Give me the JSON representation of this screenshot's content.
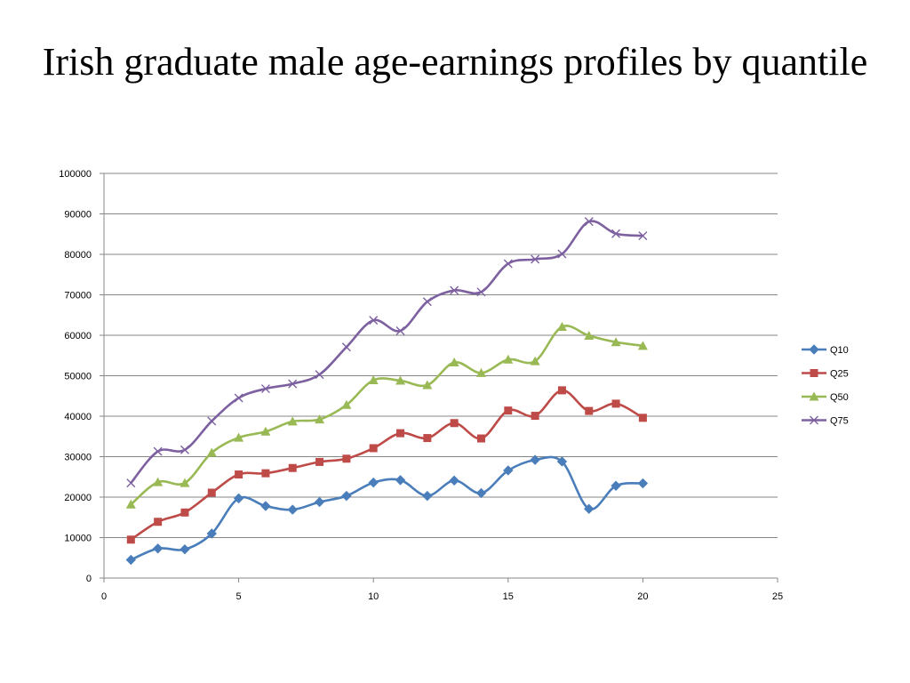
{
  "chart_data": {
    "type": "line",
    "title": "Irish graduate male age-earnings profiles by quantile",
    "xlabel": "",
    "ylabel": "",
    "xlim": [
      0,
      25
    ],
    "ylim": [
      0,
      100000
    ],
    "x_ticks": [
      0,
      5,
      10,
      15,
      20,
      25
    ],
    "y_ticks": [
      0,
      10000,
      20000,
      30000,
      40000,
      50000,
      60000,
      70000,
      80000,
      90000,
      100000
    ],
    "grid": "horizontal",
    "legend_position": "right",
    "smooth": true,
    "x": [
      1,
      2,
      3,
      4,
      5,
      6,
      7,
      8,
      9,
      10,
      11,
      12,
      13,
      14,
      15,
      16,
      17,
      18,
      19,
      20
    ],
    "series": [
      {
        "name": "Q10",
        "color": "#4A7EBB",
        "marker": "diamond",
        "values": [
          4500,
          7300,
          7100,
          11000,
          19700,
          17800,
          16900,
          18800,
          20300,
          23600,
          24200,
          20300,
          24100,
          21000,
          26600,
          29200,
          28800,
          17100,
          22800,
          23400
        ]
      },
      {
        "name": "Q25",
        "color": "#BE4B48",
        "marker": "square",
        "values": [
          9500,
          13900,
          16200,
          21100,
          25600,
          25900,
          27200,
          28700,
          29500,
          32100,
          35800,
          34600,
          38300,
          34500,
          41400,
          40100,
          46400,
          41300,
          43100,
          39600
        ]
      },
      {
        "name": "Q50",
        "color": "#98B954",
        "marker": "triangle",
        "values": [
          18200,
          23700,
          23500,
          31000,
          34700,
          36200,
          38700,
          39200,
          42800,
          48900,
          48800,
          47700,
          53300,
          50700,
          54000,
          53600,
          62100,
          59900,
          58300,
          57400
        ]
      },
      {
        "name": "Q75",
        "color": "#7D60A0",
        "marker": "x",
        "values": [
          23500,
          31300,
          31700,
          38800,
          44500,
          46800,
          48000,
          50300,
          57100,
          63700,
          61100,
          68300,
          71100,
          70700,
          77700,
          78800,
          80100,
          88100,
          85100,
          84600
        ]
      }
    ]
  }
}
